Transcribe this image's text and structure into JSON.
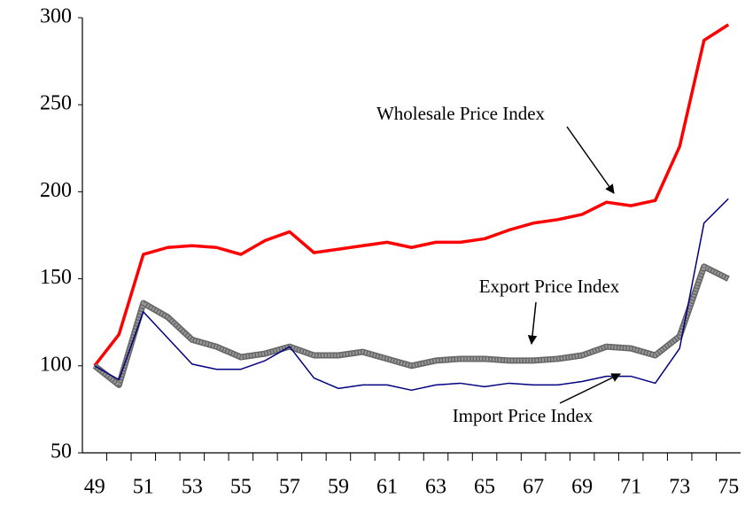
{
  "chart_data": {
    "type": "line",
    "categories": [
      "49",
      null,
      "51",
      null,
      "53",
      null,
      "55",
      null,
      "57",
      null,
      "59",
      null,
      "61",
      null,
      "63",
      null,
      "65",
      null,
      "67",
      null,
      "69",
      null,
      "71",
      null,
      "73",
      null,
      "75"
    ],
    "series": [
      {
        "name": "Wholesale Price Index",
        "color": "#ff0000",
        "values": [
          100,
          118,
          164,
          168,
          169,
          168,
          164,
          172,
          177,
          165,
          167,
          169,
          171,
          168,
          171,
          171,
          173,
          178,
          182,
          184,
          187,
          194,
          192,
          195,
          226,
          287,
          296
        ]
      },
      {
        "name": "Export Price Index",
        "color": "#999999",
        "values": [
          100,
          89,
          136,
          128,
          115,
          111,
          105,
          107,
          111,
          106,
          106,
          108,
          104,
          100,
          103,
          104,
          104,
          103,
          103,
          104,
          106,
          111,
          110,
          106,
          117,
          157,
          150
        ]
      },
      {
        "name": "Import Price Index",
        "color": "#000080",
        "values": [
          100,
          92,
          131,
          116,
          101,
          98,
          98,
          103,
          111,
          93,
          87,
          89,
          89,
          86,
          89,
          90,
          88,
          90,
          89,
          89,
          91,
          94,
          94,
          90,
          110,
          182,
          196
        ]
      }
    ],
    "ylim": [
      50,
      300
    ],
    "yticks": [
      50,
      100,
      150,
      200,
      250,
      300
    ]
  }
}
